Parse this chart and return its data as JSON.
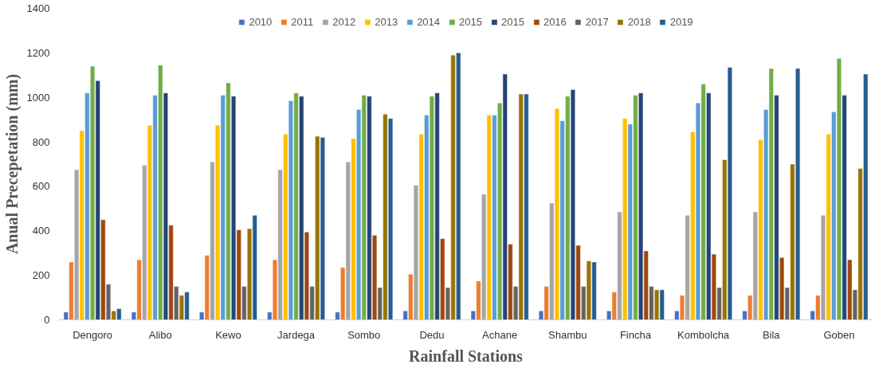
{
  "chart_data": {
    "type": "bar",
    "xlabel": "Rainfall Stations",
    "ylabel": "Anual Precepetation (mm)",
    "categories": [
      "Dengoro",
      "Alibo",
      "Kewo",
      "Jardega",
      "Sombo",
      "Dedu",
      "Achane",
      "Shambu",
      "Fincha",
      "Kombolcha",
      "Bila",
      "Goben"
    ],
    "ylim": [
      0,
      1400
    ],
    "yticks": [
      0,
      200,
      400,
      600,
      800,
      1000,
      1200,
      1400
    ],
    "grid": false,
    "legend": "top",
    "series": [
      {
        "name": "2010",
        "color": "#4472c4",
        "values": [
          35,
          35,
          35,
          35,
          35,
          40,
          40,
          40,
          40,
          40,
          40,
          40
        ]
      },
      {
        "name": "2011",
        "color": "#ed7d31",
        "values": [
          260,
          270,
          290,
          270,
          235,
          205,
          175,
          150,
          125,
          110,
          110,
          110
        ]
      },
      {
        "name": "2012",
        "color": "#a5a5a5",
        "values": [
          675,
          695,
          710,
          675,
          710,
          605,
          565,
          525,
          485,
          470,
          485,
          470
        ]
      },
      {
        "name": "2013",
        "color": "#ffc000",
        "values": [
          850,
          875,
          875,
          835,
          815,
          835,
          920,
          950,
          905,
          845,
          810,
          835
        ]
      },
      {
        "name": "2014",
        "color": "#5b9bd5",
        "values": [
          1020,
          1010,
          1010,
          985,
          945,
          920,
          920,
          895,
          880,
          975,
          945,
          935
        ]
      },
      {
        "name": "2015",
        "color": "#70ad47",
        "values": [
          1140,
          1145,
          1065,
          1020,
          1010,
          1005,
          975,
          1005,
          1010,
          1060,
          1130,
          1175
        ]
      },
      {
        "name": "2015",
        "color": "#264478",
        "values": [
          1075,
          1020,
          1005,
          1005,
          1005,
          1020,
          1105,
          1035,
          1020,
          1020,
          1010,
          1010
        ]
      },
      {
        "name": "2016",
        "color": "#9e480e",
        "values": [
          450,
          425,
          405,
          395,
          380,
          365,
          340,
          335,
          310,
          295,
          280,
          270
        ]
      },
      {
        "name": "2017",
        "color": "#636363",
        "values": [
          160,
          150,
          150,
          150,
          145,
          145,
          150,
          150,
          150,
          145,
          145,
          135
        ]
      },
      {
        "name": "2018",
        "color": "#997300",
        "values": [
          40,
          110,
          410,
          825,
          925,
          1190,
          1015,
          265,
          135,
          720,
          700,
          680
        ]
      },
      {
        "name": "2019",
        "color": "#255e91",
        "values": [
          50,
          125,
          470,
          820,
          905,
          1200,
          1015,
          260,
          135,
          1135,
          1130,
          1105
        ]
      }
    ]
  }
}
